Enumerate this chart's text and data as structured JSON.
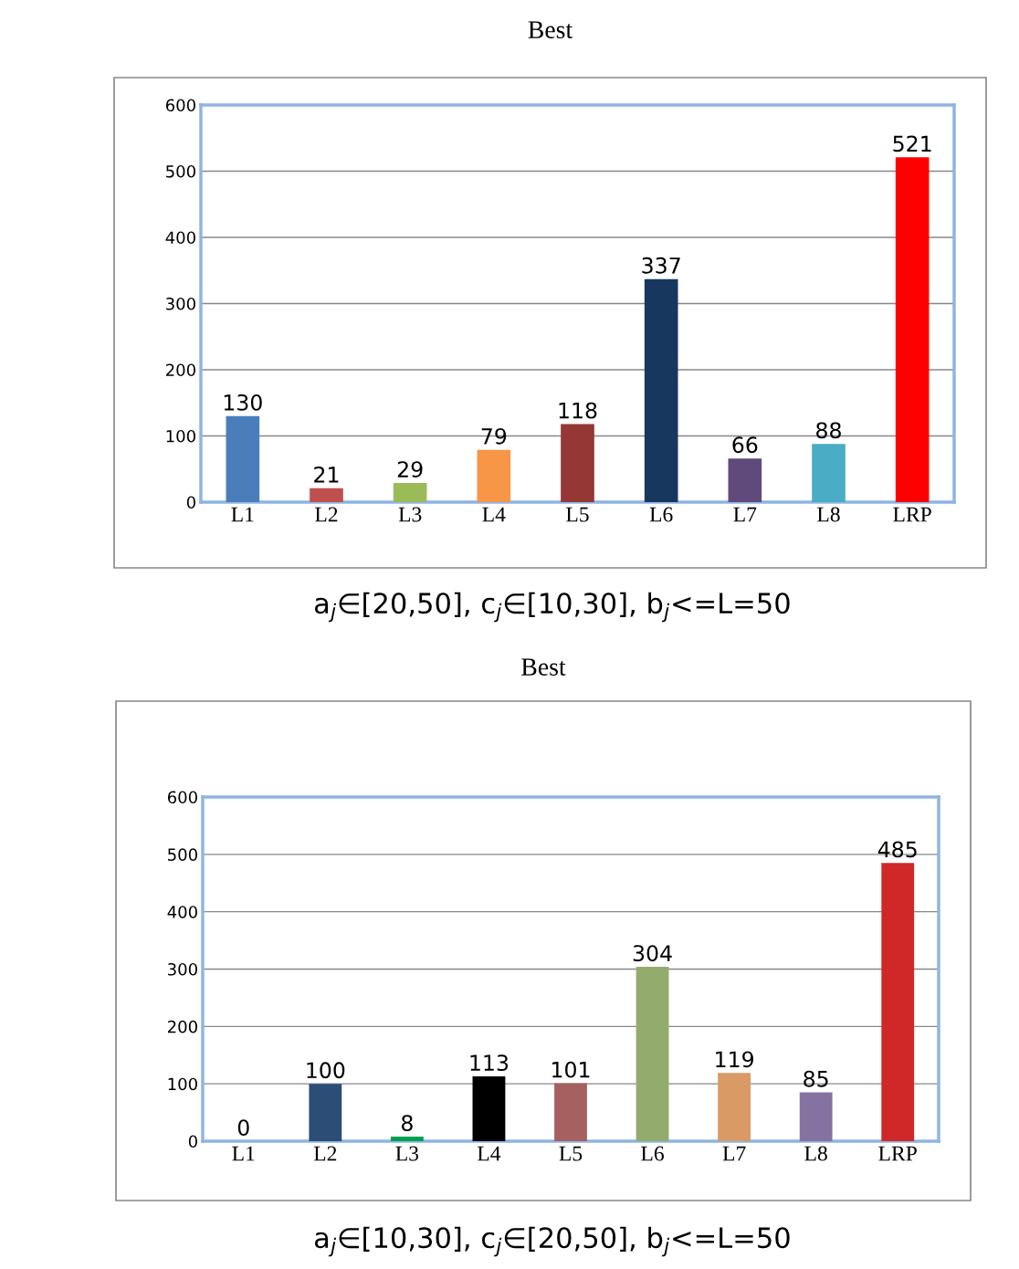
{
  "chart_data": [
    {
      "type": "bar",
      "title": "Best",
      "categories": [
        "L1",
        "L2",
        "L3",
        "L4",
        "L5",
        "L6",
        "L7",
        "L8",
        "LRP"
      ],
      "values": [
        130,
        21,
        29,
        79,
        118,
        337,
        66,
        88,
        521
      ],
      "colors": [
        "#4a7ebb",
        "#c0504d",
        "#9bbb59",
        "#f79646",
        "#953735",
        "#17375e",
        "#604a7b",
        "#4bacc6",
        "#ff0000"
      ],
      "ylim": [
        0,
        600
      ],
      "yticks": [
        0,
        100,
        200,
        300,
        400,
        500,
        600
      ],
      "grid": "y",
      "data_labels": true,
      "annotations": [
        "a$_{j}$∈[20,50], c$_{j}$∈[10,30], b$_{j}$<=L=50"
      ]
    },
    {
      "type": "bar",
      "title": "Best",
      "categories": [
        "L1",
        "L2",
        "L3",
        "L4",
        "L5",
        "L6",
        "L7",
        "L8",
        "LRP"
      ],
      "values": [
        0,
        100,
        8,
        113,
        101,
        304,
        119,
        85,
        485
      ],
      "colors": [
        "#4f81bd",
        "#2c4d75",
        "#00a050",
        "#000000",
        "#a66060",
        "#93ac6e",
        "#d99a66",
        "#8672a0",
        "#d02828"
      ],
      "ylim": [
        0,
        600
      ],
      "yticks": [
        0,
        100,
        200,
        300,
        400,
        500,
        600
      ],
      "grid": "y",
      "data_labels": true,
      "annotations": [
        "a$_{j}$∈[10,30], c$_{j}$∈[20,50], b$_{j}$<=L=50"
      ]
    }
  ]
}
